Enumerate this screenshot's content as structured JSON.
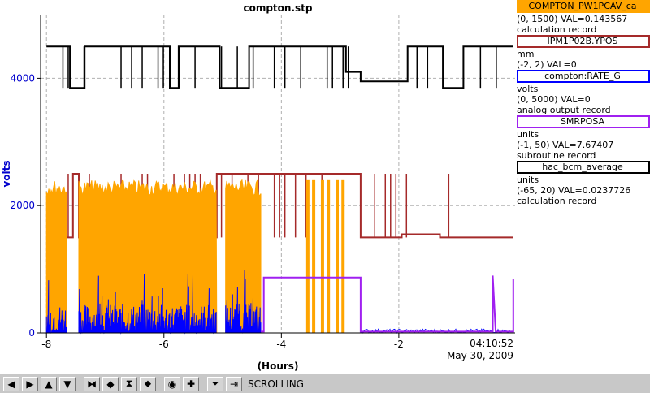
{
  "chart_data": {
    "type": "line",
    "title": "compton.stp",
    "xlabel": "(Hours)",
    "ylabel": "volts",
    "xlim": [
      -8.1,
      -0.02
    ],
    "ylim": [
      0,
      5000
    ],
    "x_ticks": [
      "-8",
      "-6",
      "-4",
      "-2"
    ],
    "y_ticks": [
      "0",
      "2000",
      "4000"
    ],
    "y_tick_values": [
      0,
      2000,
      4000
    ],
    "x_tick_values": [
      -8,
      -6,
      -4,
      -2
    ],
    "end_time": "04:10:52",
    "end_date": "May 30, 2009",
    "grid": true,
    "series": [
      {
        "name": "hac_bcm_average",
        "color": "#000000",
        "base": 4500,
        "low": 3850,
        "segments": [
          [
            -8.0,
            -7.6,
            4500
          ],
          [
            -7.6,
            -7.35,
            3850
          ],
          [
            -7.35,
            -5.9,
            4500
          ],
          [
            -5.9,
            -5.75,
            3850
          ],
          [
            -5.75,
            -5.05,
            4500
          ],
          [
            -5.05,
            -4.55,
            3850
          ],
          [
            -4.55,
            -2.9,
            4500
          ],
          [
            -2.9,
            -2.65,
            4100
          ],
          [
            -2.65,
            -1.85,
            3950
          ],
          [
            -1.85,
            -1.25,
            4500
          ],
          [
            -1.25,
            -0.9,
            3850
          ],
          [
            -0.9,
            -0.05,
            4500
          ]
        ]
      },
      {
        "name": "IPM1P02B.YPOS",
        "color": "#a52a2a",
        "base": 1500,
        "high": 2500,
        "segments": [
          [
            -8.0,
            -7.55,
            1500
          ],
          [
            -7.55,
            -7.45,
            2500
          ],
          [
            -7.45,
            -5.1,
            1500
          ],
          [
            -5.1,
            -4.3,
            2500
          ],
          [
            -4.3,
            -2.65,
            2500
          ],
          [
            -2.65,
            -1.95,
            1500
          ],
          [
            -1.95,
            -1.3,
            1550
          ],
          [
            -1.3,
            -0.05,
            1500
          ]
        ]
      },
      {
        "name": "COMPTON_PW1PCAV_ca",
        "color": "#ffa500",
        "band_low": 0,
        "band_high": 2400,
        "bands": [
          [
            -8.0,
            -7.65
          ],
          [
            -7.45,
            -5.1
          ],
          [
            -4.95,
            -4.35
          ]
        ],
        "spikes": [
          -3.55,
          -3.45,
          -3.3,
          -3.2,
          -3.05,
          -2.95
        ]
      },
      {
        "name": "compton:RATE_G",
        "color": "#0000ff",
        "band_high": 450,
        "bands": [
          [
            -8.0,
            -7.65
          ],
          [
            -7.45,
            -5.1
          ],
          [
            -4.95,
            -4.35
          ]
        ],
        "tail_level": 60
      },
      {
        "name": "SMRPOSA",
        "color": "#a020f0",
        "points": [
          [
            -4.35,
            20
          ],
          [
            -4.3,
            20
          ],
          [
            -4.3,
            870
          ],
          [
            -2.65,
            870
          ],
          [
            -2.65,
            20
          ],
          [
            -0.4,
            20
          ],
          [
            -0.4,
            900
          ],
          [
            -0.35,
            20
          ],
          [
            -0.05,
            20
          ],
          [
            -0.05,
            850
          ]
        ]
      }
    ]
  },
  "legend": [
    {
      "name": "COMPTON_PW1PCAV_ca",
      "color": "#ffa500",
      "fill": "#ffa500",
      "lines": [
        "(0, 1500) VAL=0.143567",
        "calculation record"
      ]
    },
    {
      "name": "IPM1P02B.YPOS",
      "color": "#a52a2a",
      "fill": "#ffffff",
      "lines": [
        "mm",
        "(-2, 2) VAL=0"
      ]
    },
    {
      "name": "compton:RATE_G",
      "color": "#0000ff",
      "fill": "#ffffff",
      "lines": [
        "volts",
        "(0, 5000) VAL=0",
        "analog output record"
      ]
    },
    {
      "name": "SMRPOSA",
      "color": "#a020f0",
      "fill": "#ffffff",
      "lines": [
        "units",
        "(-1, 50) VAL=7.67407",
        "subroutine record"
      ]
    },
    {
      "name": "hac_bcm_average",
      "color": "#000000",
      "fill": "#ffffff",
      "lines": [
        "units",
        "(-65, 20) VAL=0.0237726",
        "calculation record"
      ]
    }
  ],
  "toolbar": {
    "buttons": [
      {
        "name": "scroll-left-button",
        "icon": "arrow-left-icon",
        "glyph": "◀"
      },
      {
        "name": "scroll-right-button",
        "icon": "arrow-right-icon",
        "glyph": "▶"
      },
      {
        "name": "scroll-up-button",
        "icon": "arrow-up-icon",
        "glyph": "▲"
      },
      {
        "name": "scroll-down-button",
        "icon": "arrow-down-icon",
        "glyph": "▼"
      },
      {
        "name": "zoom-in-x-button",
        "icon": "compress-horizontal-icon",
        "glyph": "⧓"
      },
      {
        "name": "zoom-out-x-button",
        "icon": "expand-horizontal-icon",
        "glyph": "◆"
      },
      {
        "name": "zoom-in-y-button",
        "icon": "compress-vertical-icon",
        "glyph": "⧗"
      },
      {
        "name": "zoom-out-y-button",
        "icon": "expand-vertical-icon",
        "glyph": "⬥"
      },
      {
        "name": "autoscale-button",
        "icon": "target-icon",
        "glyph": "◉"
      },
      {
        "name": "crosshair-button",
        "icon": "crosshair-icon",
        "glyph": "✚"
      },
      {
        "name": "scroll-mode-button",
        "icon": "scroll-mode-icon",
        "glyph": "⏷"
      },
      {
        "name": "jump-end-button",
        "icon": "jump-end-icon",
        "glyph": "⇥"
      }
    ],
    "mode_label": "SCROLLING"
  }
}
